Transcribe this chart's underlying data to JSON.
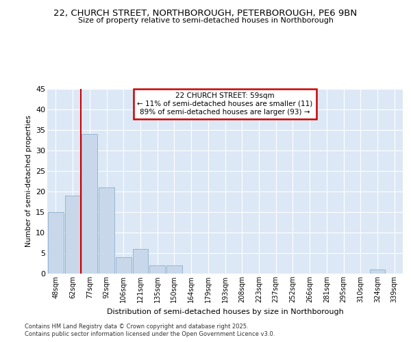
{
  "title_line1": "22, CHURCH STREET, NORTHBOROUGH, PETERBOROUGH, PE6 9BN",
  "title_line2": "Size of property relative to semi-detached houses in Northborough",
  "xlabel": "Distribution of semi-detached houses by size in Northborough",
  "ylabel": "Number of semi-detached properties",
  "categories": [
    "48sqm",
    "62sqm",
    "77sqm",
    "92sqm",
    "106sqm",
    "121sqm",
    "135sqm",
    "150sqm",
    "164sqm",
    "179sqm",
    "193sqm",
    "208sqm",
    "223sqm",
    "237sqm",
    "252sqm",
    "266sqm",
    "281sqm",
    "295sqm",
    "310sqm",
    "324sqm",
    "339sqm"
  ],
  "values": [
    15,
    19,
    34,
    21,
    4,
    6,
    2,
    2,
    0,
    0,
    0,
    0,
    0,
    0,
    0,
    0,
    0,
    0,
    0,
    1,
    0
  ],
  "property_marker_index": 1,
  "bar_color": "#c8d8ea",
  "bar_edge_color": "#8ab0cc",
  "background_color": "#dce8f5",
  "grid_color": "#ffffff",
  "marker_line_color": "#cc0000",
  "ylim": [
    0,
    45
  ],
  "yticks": [
    0,
    5,
    10,
    15,
    20,
    25,
    30,
    35,
    40,
    45
  ],
  "annotation_title": "22 CHURCH STREET: 59sqm",
  "annotation_line1": "← 11% of semi-detached houses are smaller (11)",
  "annotation_line2": "89% of semi-detached houses are larger (93) →",
  "annotation_box_color": "#ffffff",
  "annotation_border_color": "#cc0000",
  "footer_line1": "Contains HM Land Registry data © Crown copyright and database right 2025.",
  "footer_line2": "Contains public sector information licensed under the Open Government Licence v3.0."
}
